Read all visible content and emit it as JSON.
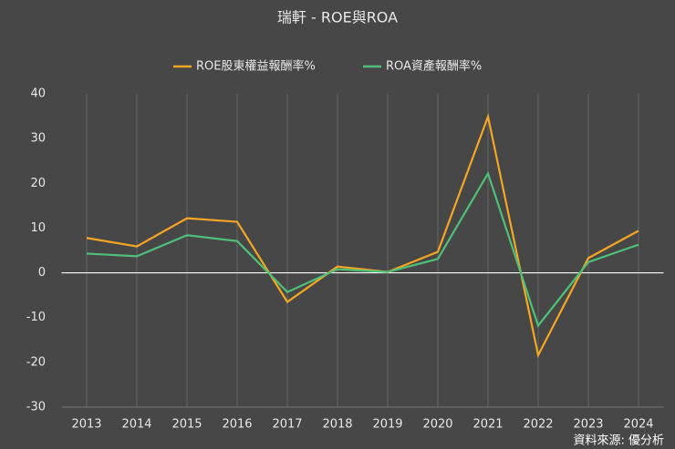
{
  "chart_data": {
    "type": "line",
    "title": "瑞軒 - ROE與ROA",
    "source": "資料來源: 優分析",
    "categories": [
      "2013",
      "2014",
      "2015",
      "2016",
      "2017",
      "2018",
      "2019",
      "2020",
      "2021",
      "2022",
      "2023",
      "2024"
    ],
    "series": [
      {
        "name": "ROE股東權益報酬率%",
        "color": "#f5a623",
        "values": [
          7.8,
          5.9,
          12.2,
          11.4,
          -6.5,
          1.4,
          0.2,
          4.7,
          34.9,
          -18.4,
          3.3,
          9.4
        ]
      },
      {
        "name": "ROA資產報酬率%",
        "color": "#4fc07a",
        "values": [
          4.3,
          3.7,
          8.4,
          7.1,
          -4.3,
          0.8,
          0.2,
          3.1,
          22.2,
          -11.8,
          2.4,
          6.3
        ]
      }
    ],
    "ylim": [
      -30,
      40
    ],
    "yticks": [
      -30,
      -20,
      -10,
      0,
      10,
      20,
      30,
      40
    ],
    "grid": "x",
    "legend": "top"
  }
}
